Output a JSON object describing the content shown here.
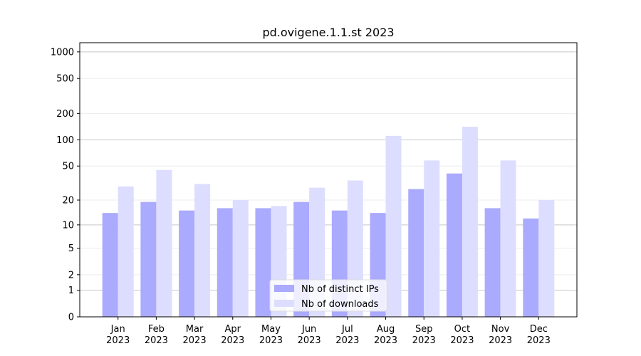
{
  "chart_data": {
    "type": "bar",
    "title": "pd.ovigene.1.1.st 2023",
    "categories": [
      "Jan 2023",
      "Feb 2023",
      "Mar 2023",
      "Apr 2023",
      "May 2023",
      "Jun 2023",
      "Jul 2023",
      "Aug 2023",
      "Sep 2023",
      "Oct 2023",
      "Nov 2023",
      "Dec 2023"
    ],
    "series": [
      {
        "name": "Nb of distinct IPs",
        "color": "#aaaaff",
        "values": [
          14,
          19,
          15,
          16,
          16,
          19,
          15,
          14,
          27,
          41,
          16,
          12
        ]
      },
      {
        "name": "Nb of downloads",
        "color": "#ddddff",
        "values": [
          29,
          45,
          31,
          20,
          17,
          28,
          34,
          111,
          58,
          141,
          58,
          20
        ]
      }
    ],
    "yscale": "log1p",
    "ylim": [
      0,
      1270
    ],
    "yticks": [
      0,
      1,
      2,
      5,
      10,
      20,
      50,
      100,
      200,
      500,
      1000
    ],
    "grid": true,
    "legend": "lower center"
  }
}
